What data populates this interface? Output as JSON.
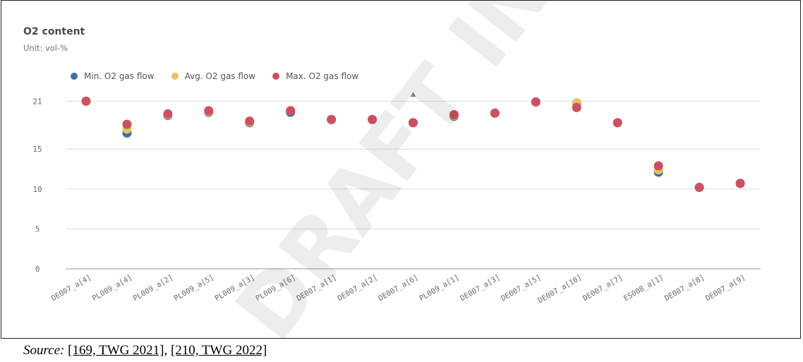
{
  "chart_title": "O2 content",
  "chart_subtitle": "Unit: vol-%",
  "legend": [
    {
      "label": "Min. O2 gas flow",
      "color": "#3b6ea5"
    },
    {
      "label": "Avg. O2 gas flow",
      "color": "#e0c65a"
    },
    {
      "label": "Max. O2 gas flow",
      "color": "#cf4f62"
    }
  ],
  "watermark_text": "DRAFT IN PROGRESS",
  "source": {
    "label": "Source:",
    "ref1": "[169, TWG 2021]",
    "separator": ", ",
    "ref2": "[210, TWG 2022]"
  },
  "chart_data": {
    "type": "scatter",
    "title": "O2 content",
    "subtitle": "Unit: vol-%",
    "xlabel": "",
    "ylabel": "",
    "ylim": [
      0,
      22
    ],
    "yticks": [
      0,
      5,
      10,
      15,
      21
    ],
    "ytick_labels": [
      "0",
      "5",
      "10",
      "15",
      "21"
    ],
    "grid": true,
    "legend_position": "top-left",
    "categories": [
      "DE007_a[4]",
      "PL009_a[4]",
      "PL009_a[2]",
      "PL009_a[5]",
      "PL009_a[3]",
      "PL009_a[6]",
      "DE007_a[1]",
      "DE007_a[2]",
      "DE007_a[6]",
      "PL009_a[1]",
      "DE007_a[3]",
      "DE007_a[5]",
      "DE007_a[10]",
      "DE007_a[7]",
      "ES008_a[1]",
      "DE007_a[8]",
      "DE007_a[9]"
    ],
    "series": [
      {
        "name": "Min. O2 gas flow",
        "color": "#3b6ea5",
        "values": [
          21.0,
          17.0,
          19.2,
          19.6,
          18.3,
          19.6,
          18.7,
          18.7,
          18.3,
          19.1,
          19.5,
          20.9,
          20.7,
          18.3,
          12.1,
          10.2,
          10.7
        ]
      },
      {
        "name": "Avg. O2 gas flow",
        "color": "#e0c65a",
        "values": [
          21.0,
          17.5,
          19.3,
          19.7,
          18.4,
          19.8,
          18.7,
          18.7,
          18.3,
          19.2,
          19.5,
          20.9,
          20.8,
          18.3,
          12.4,
          10.2,
          10.7
        ]
      },
      {
        "name": "Max. O2 gas flow",
        "color": "#cf4f62",
        "values": [
          21.0,
          18.1,
          19.4,
          19.8,
          18.5,
          19.8,
          18.7,
          18.7,
          18.3,
          19.3,
          19.5,
          20.9,
          20.2,
          18.3,
          12.9,
          10.2,
          10.7
        ]
      }
    ],
    "annotations": [
      {
        "category": "DE007_a[6]",
        "value": 21.8,
        "marker": "triangle"
      }
    ]
  }
}
